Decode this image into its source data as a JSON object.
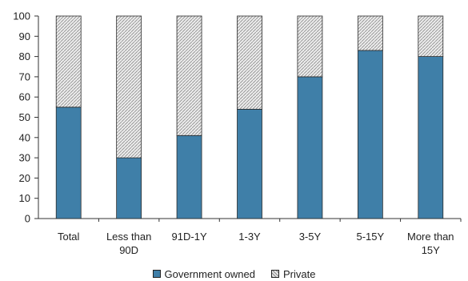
{
  "chart_data": {
    "type": "bar",
    "stacked": true,
    "categories": [
      [
        "Total"
      ],
      [
        "Less than",
        "90D"
      ],
      [
        "91D-1Y"
      ],
      [
        "1-3Y"
      ],
      [
        "3-5Y"
      ],
      [
        "5-15Y"
      ],
      [
        "More than",
        "15Y"
      ]
    ],
    "series": [
      {
        "name": "Government owned",
        "values": [
          55,
          30,
          41,
          54,
          70,
          83,
          80
        ],
        "color": "#3f7fa8"
      },
      {
        "name": "Private",
        "values": [
          45,
          70,
          59,
          46,
          30,
          17,
          20
        ],
        "color": "#e6e6e6",
        "pattern": "dotted-hatch"
      }
    ],
    "ylim": [
      0,
      100
    ],
    "yticks": [
      0,
      10,
      20,
      30,
      40,
      50,
      60,
      70,
      80,
      90,
      100
    ],
    "grid": false,
    "legend_position": "bottom"
  }
}
